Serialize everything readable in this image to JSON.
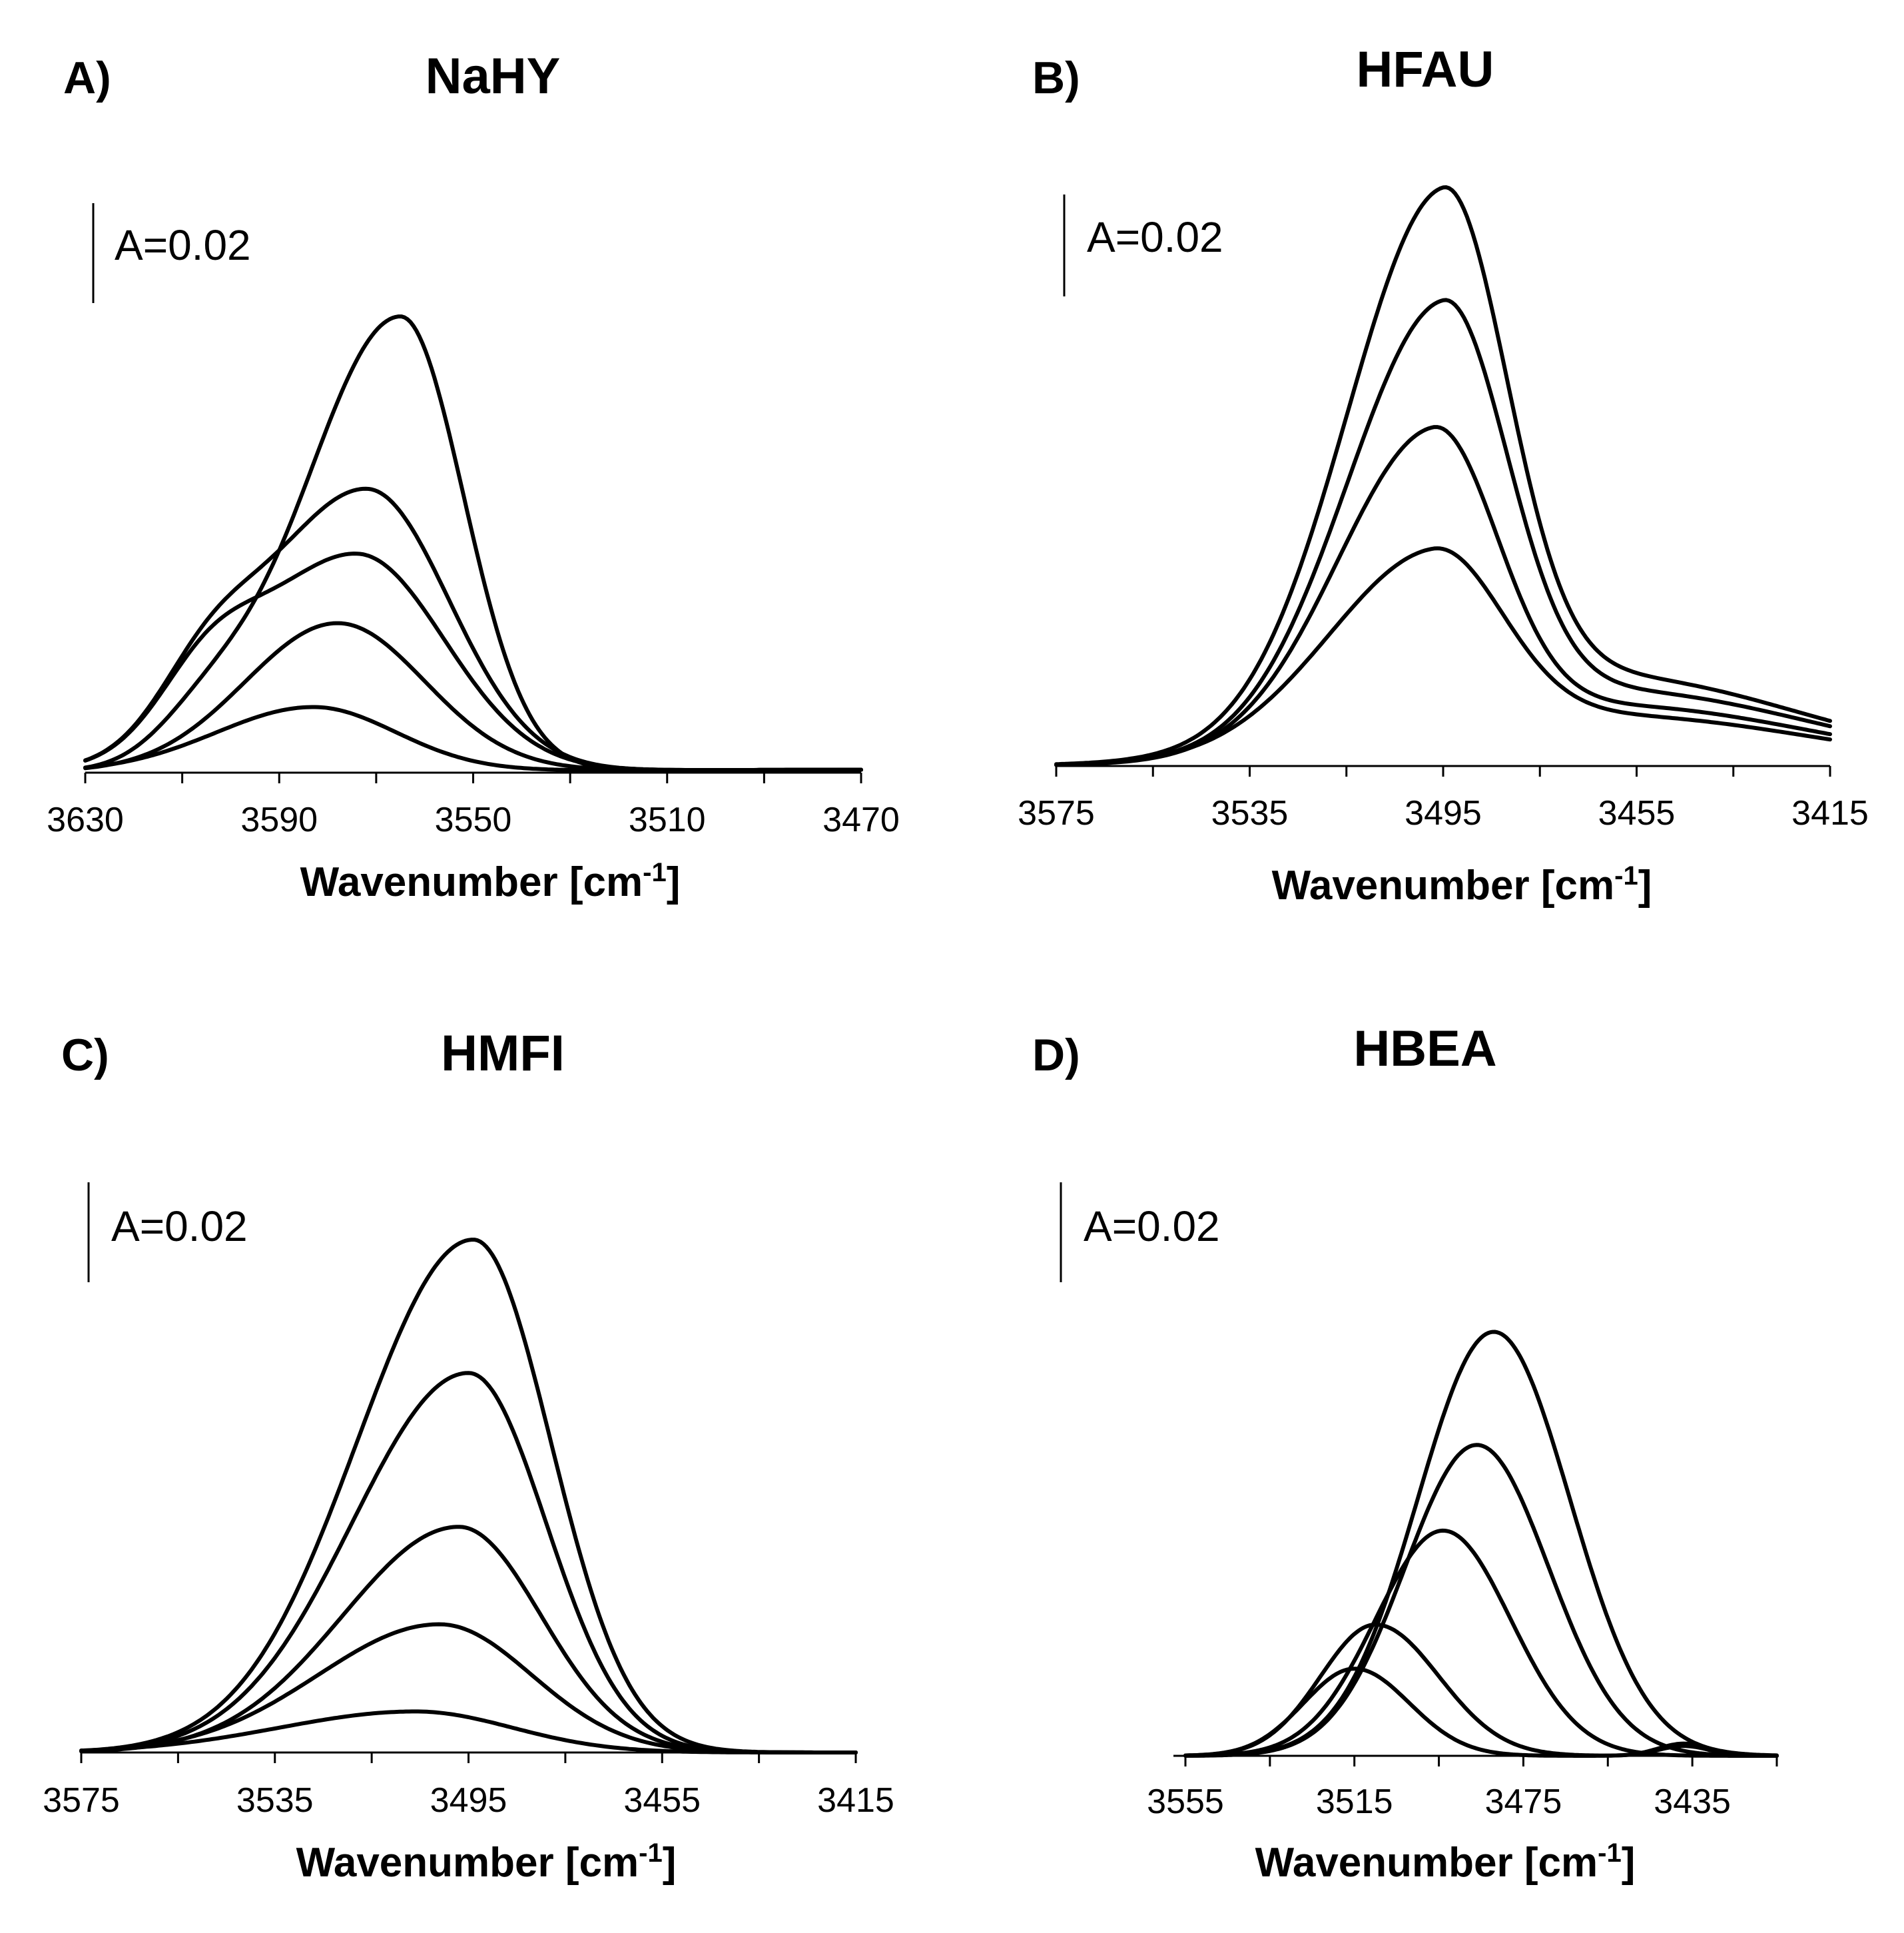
{
  "chart_data": [
    {
      "type": "line",
      "panel": "A)",
      "title": "NaHY",
      "scale_label": "A=0.02",
      "scale_value": 0.02,
      "xlabel_main": "Wavenumber [cm",
      "xlabel_sup": "-1",
      "xlabel_close": "]",
      "xlim": [
        3630,
        3470
      ],
      "ylim": [
        0,
        0.1
      ],
      "x_ticks": [
        "3630",
        "3590",
        "3550",
        "3510",
        "3470"
      ],
      "x_tick_values": [
        3630,
        3590,
        3550,
        3510,
        3470
      ],
      "minor_step": 20,
      "baseline_edges": [
        0.0002,
        0.0006
      ],
      "series": [
        {
          "name": "1",
          "center": 3565,
          "amplitude": 0.0922,
          "sigma_left": 20,
          "sigma_right": 13,
          "shoulder": {
            "center": 3605,
            "amplitude": 0.008,
            "sigma": 10
          }
        },
        {
          "name": "2",
          "center": 3572,
          "amplitude": 0.0572,
          "sigma_left": 22,
          "sigma_right": 17,
          "shoulder": {
            "center": 3605,
            "amplitude": 0.012,
            "sigma": 10
          }
        },
        {
          "name": "3",
          "center": 3574,
          "amplitude": 0.044,
          "sigma_left": 22,
          "sigma_right": 18,
          "shoulder": {
            "center": 3605,
            "amplitude": 0.012,
            "sigma": 10
          }
        },
        {
          "name": "4",
          "center": 3578,
          "amplitude": 0.03,
          "sigma_left": 19,
          "sigma_right": 18
        },
        {
          "name": "5",
          "center": 3583,
          "amplitude": 0.013,
          "sigma_left": 20,
          "sigma_right": 17
        }
      ]
    },
    {
      "type": "line",
      "panel": "B)",
      "title": "HFAU",
      "scale_label": "A=0.02",
      "scale_value": 0.02,
      "xlabel_main": "Wavenumber [cm",
      "xlabel_sup": "-1",
      "xlabel_close": "]",
      "xlim": [
        3575,
        3415
      ],
      "ylim": [
        0,
        0.1
      ],
      "x_ticks": [
        "3575",
        "3535",
        "3495",
        "3455",
        "3415"
      ],
      "x_tick_values": [
        3575,
        3535,
        3495,
        3455,
        3415
      ],
      "minor_step": 20,
      "baseline_edges": [
        0.0,
        0.0
      ],
      "series": [
        {
          "name": "1",
          "center": 3495,
          "amplitude": 0.103,
          "sigma_left": 20,
          "sigma_right": 13,
          "broad": {
            "center": 3462,
            "amplitude": 0.018,
            "sigma": 40
          }
        },
        {
          "name": "2",
          "center": 3495,
          "amplitude": 0.083,
          "sigma_left": 20,
          "sigma_right": 13,
          "broad": {
            "center": 3460,
            "amplitude": 0.015,
            "sigma": 40
          }
        },
        {
          "name": "3",
          "center": 3497,
          "amplitude": 0.06,
          "sigma_left": 20,
          "sigma_right": 13,
          "broad": {
            "center": 3460,
            "amplitude": 0.012,
            "sigma": 40
          }
        },
        {
          "name": "4",
          "center": 3497,
          "amplitude": 0.037,
          "sigma_left": 22,
          "sigma_right": 14,
          "broad": {
            "center": 3460,
            "amplitude": 0.01,
            "sigma": 40
          }
        }
      ]
    },
    {
      "type": "line",
      "panel": "C)",
      "title": "HMFI",
      "scale_label": "A=0.02",
      "scale_value": 0.02,
      "xlabel_main": "Wavenumber [cm",
      "xlabel_sup": "-1",
      "xlabel_close": "]",
      "xlim": [
        3575,
        3415
      ],
      "ylim": [
        0,
        0.1
      ],
      "x_ticks": [
        "3575",
        "3535",
        "3495",
        "3455",
        "3415"
      ],
      "x_tick_values": [
        3575,
        3535,
        3495,
        3455,
        3415
      ],
      "minor_step": 20,
      "baseline_edges": [
        0.0,
        0.0
      ],
      "series": [
        {
          "name": "1",
          "center": 3494,
          "amplitude": 0.1,
          "sigma_left": 24,
          "sigma_right": 16
        },
        {
          "name": "2",
          "center": 3495,
          "amplitude": 0.074,
          "sigma_left": 24,
          "sigma_right": 16
        },
        {
          "name": "3",
          "center": 3497,
          "amplitude": 0.044,
          "sigma_left": 24,
          "sigma_right": 17
        },
        {
          "name": "4",
          "center": 3501,
          "amplitude": 0.025,
          "sigma_left": 25,
          "sigma_right": 19
        },
        {
          "name": "5",
          "center": 3506,
          "amplitude": 0.008,
          "sigma_left": 28,
          "sigma_right": 20
        }
      ]
    },
    {
      "type": "line",
      "panel": "D)",
      "title": "HBEA",
      "scale_label": "A=0.02",
      "scale_value": 0.02,
      "xlabel_main": "Wavenumber [cm",
      "xlabel_sup": "-1",
      "xlabel_close": "]",
      "xlim": [
        3555,
        3415
      ],
      "ylim": [
        0,
        0.1
      ],
      "x_ticks": [
        "3555",
        "3515",
        "3475",
        "3435"
      ],
      "x_tick_values": [
        3555,
        3515,
        3475,
        3435
      ],
      "minor_step": 20,
      "baseline_edges": [
        0.0,
        0.0
      ],
      "series": [
        {
          "name": "1",
          "center": 3482,
          "amplitude": 0.0866,
          "sigma_left": 18,
          "sigma_right": 18
        },
        {
          "name": "2",
          "center": 3486,
          "amplitude": 0.0635,
          "sigma_left": 17,
          "sigma_right": 17
        },
        {
          "name": "3",
          "center": 3494,
          "amplitude": 0.046,
          "sigma_left": 16,
          "sigma_right": 16
        },
        {
          "name": "4",
          "center": 3510,
          "amplitude": 0.0268,
          "sigma_left": 13,
          "sigma_right": 15,
          "tail": {
            "center": 3437,
            "amplitude": 0.002,
            "sigma": 6
          }
        },
        {
          "name": "5",
          "center": 3515,
          "amplitude": 0.0178,
          "sigma_left": 12,
          "sigma_right": 13,
          "tail": {
            "center": 3437,
            "amplitude": 0.0025,
            "sigma": 6
          }
        }
      ]
    }
  ]
}
